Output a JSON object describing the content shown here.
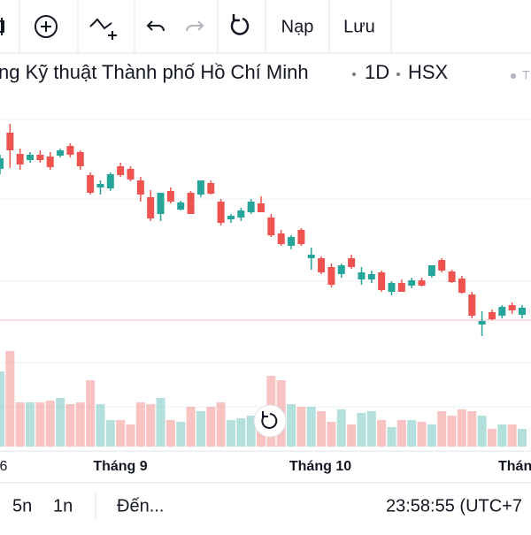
{
  "toolbar": {
    "load": "Nạp",
    "save": "Lưu"
  },
  "header": {
    "name": "ng Kỹ thuật Thành phố Hồ Chí Minh",
    "interval": "1D",
    "exchange": "HSX",
    "extra": "T"
  },
  "x_axis": {
    "labels": [
      "6",
      "Tháng 9",
      "Tháng 10",
      "Thán"
    ]
  },
  "footer": {
    "range_5d": "5n",
    "range_1d": "1n",
    "goto": "Đến...",
    "clock": "23:58:55 (UTC+7"
  },
  "chart": {
    "type": "candlestick",
    "up_color": "#26a69a",
    "down_color": "#ef5350",
    "ylim": [
      0,
      280
    ],
    "volume_lim": [
      0,
      110
    ],
    "candles": [
      [
        209,
        225,
        203,
        221
      ],
      [
        250,
        260,
        210,
        230
      ],
      [
        226,
        232,
        208,
        214
      ],
      [
        219,
        228,
        216,
        225
      ],
      [
        225,
        230,
        216,
        219
      ],
      [
        223,
        228,
        208,
        211
      ],
      [
        224,
        232,
        222,
        230
      ],
      [
        235,
        238,
        222,
        225
      ],
      [
        228,
        230,
        208,
        212
      ],
      [
        202,
        205,
        180,
        182
      ],
      [
        188,
        196,
        180,
        192
      ],
      [
        187,
        205,
        184,
        203
      ],
      [
        212,
        216,
        200,
        202
      ],
      [
        209,
        212,
        195,
        197
      ],
      [
        196,
        200,
        172,
        180
      ],
      [
        177,
        185,
        150,
        153
      ],
      [
        158,
        182,
        150,
        182
      ],
      [
        184,
        188,
        170,
        172
      ],
      [
        163,
        173,
        162,
        171
      ],
      [
        182,
        184,
        158,
        158
      ],
      [
        180,
        196,
        177,
        196
      ],
      [
        193,
        196,
        180,
        181
      ],
      [
        172,
        175,
        145,
        148
      ],
      [
        152,
        158,
        148,
        156
      ],
      [
        154,
        165,
        150,
        162
      ],
      [
        160,
        175,
        158,
        172
      ],
      [
        170,
        178,
        160,
        160
      ],
      [
        154,
        158,
        132,
        134
      ],
      [
        136,
        140,
        122,
        124
      ],
      [
        122,
        134,
        118,
        132
      ],
      [
        140,
        142,
        122,
        124
      ],
      [
        108,
        120,
        95,
        112
      ],
      [
        108,
        110,
        90,
        92
      ],
      [
        98,
        102,
        75,
        78
      ],
      [
        90,
        102,
        86,
        100
      ],
      [
        108,
        112,
        96,
        98
      ],
      [
        84,
        98,
        78,
        92
      ],
      [
        84,
        94,
        80,
        90
      ],
      [
        92,
        94,
        70,
        72
      ],
      [
        70,
        82,
        66,
        80
      ],
      [
        80,
        84,
        70,
        70
      ],
      [
        77,
        86,
        74,
        83
      ],
      [
        83,
        86,
        76,
        77
      ],
      [
        88,
        100,
        86,
        100
      ],
      [
        106,
        108,
        92,
        94
      ],
      [
        93,
        95,
        80,
        81
      ],
      [
        85,
        88,
        68,
        69
      ],
      [
        67,
        70,
        40,
        43
      ],
      [
        33,
        48,
        20,
        37
      ],
      [
        47,
        50,
        38,
        39
      ],
      [
        43,
        55,
        40,
        53
      ],
      [
        55,
        58,
        45,
        49
      ],
      [
        44,
        55,
        40,
        52
      ]
    ],
    "volumes": [
      85,
      108,
      50,
      50,
      50,
      52,
      55,
      48,
      50,
      75,
      48,
      30,
      30,
      25,
      50,
      48,
      55,
      30,
      28,
      45,
      40,
      45,
      50,
      30,
      32,
      35,
      40,
      80,
      75,
      48,
      45,
      45,
      40,
      28,
      42,
      25,
      38,
      40,
      30,
      22,
      30,
      30,
      28,
      25,
      40,
      35,
      42,
      40,
      35,
      20,
      25,
      25,
      20
    ]
  }
}
